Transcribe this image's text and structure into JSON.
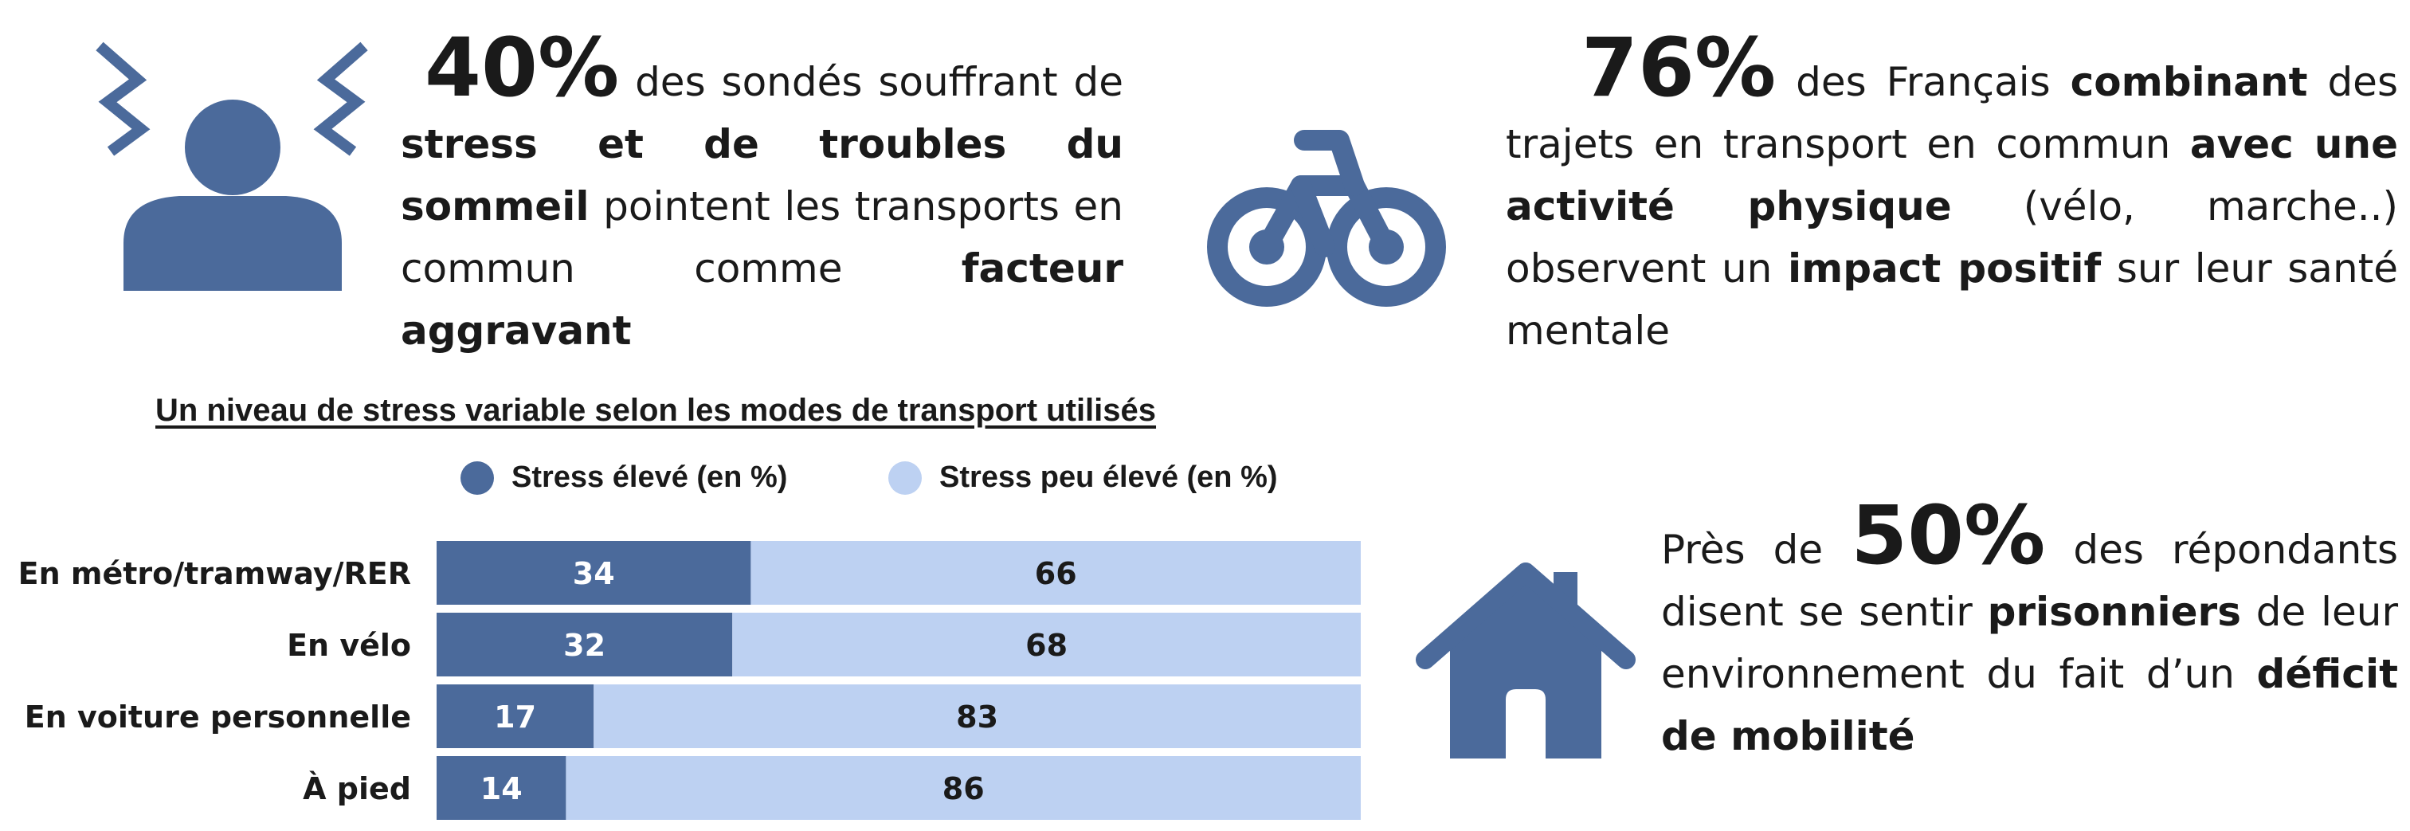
{
  "colors": {
    "dark": "#4b6a9b",
    "light": "#bdd1f2",
    "text": "#1a1a1a"
  },
  "stat1": {
    "icon": "stressed-person-icon",
    "big": "40%",
    "t1": " des sondés souffrant de ",
    "b1": "stress et de troubles du sommeil",
    "t2": " pointent les transports en commun comme ",
    "b2": "facteur aggravant"
  },
  "stat2": {
    "icon": "bicycle-icon",
    "big": "76%",
    "t1": " des Français ",
    "b1": "combinant",
    "t2": " des trajets en transport en commun ",
    "b2": "avec une activité physique",
    "t3": " (vélo, marche..) observent un ",
    "b3": "impact positif",
    "t4": " sur leur santé mentale"
  },
  "stat3": {
    "icon": "house-icon",
    "t1": "Près de ",
    "big": "50%",
    "t2": " des répondants disent se sentir ",
    "b1": "prisonniers",
    "t3": " de leur environnement du fait d’un ",
    "b2": "déficit de mobilité"
  },
  "chart_data": {
    "type": "bar",
    "orientation": "horizontal",
    "stacked": true,
    "title": "Un niveau de stress variable selon les modes de transport utilisés",
    "categories": [
      "En métro/tramway/RER",
      "En vélo",
      "En voiture personnelle",
      "À pied"
    ],
    "series": [
      {
        "name": "Stress élevé (en %)",
        "values": [
          34,
          32,
          17,
          14
        ],
        "color": "#4b6a9b"
      },
      {
        "name": "Stress peu élevé (en %)",
        "values": [
          66,
          68,
          83,
          86
        ],
        "color": "#bdd1f2"
      }
    ],
    "xlim": [
      0,
      100
    ],
    "legend": "top",
    "grid": false
  }
}
